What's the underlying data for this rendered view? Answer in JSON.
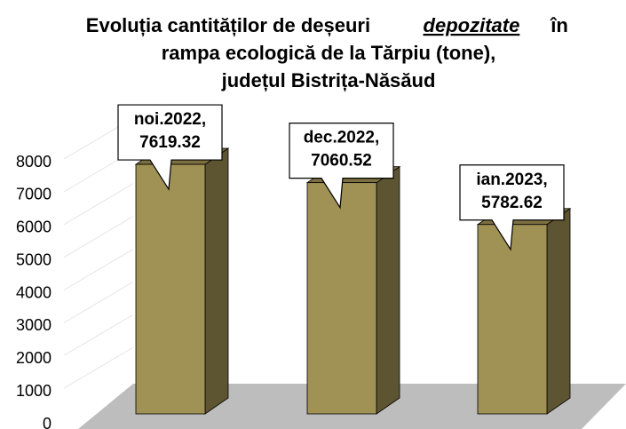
{
  "chart_data": {
    "type": "bar3d",
    "title": [
      "Evoluția cantităților de deșeuri",
      "depozitate",
      "în",
      "rampa ecologică de la Tărpiu (tone),",
      "județul Bistrița-Năsăud"
    ],
    "categories": [
      "noi.2022,",
      "dec.2022,",
      "ian.2023,"
    ],
    "values": [
      7619.32,
      7060.52,
      5782.62
    ],
    "color": "#a09155",
    "ylim": [
      0,
      8000
    ],
    "yticks": [
      0,
      1000,
      2000,
      3000,
      4000,
      5000,
      6000,
      7000,
      8000
    ],
    "grid": true
  }
}
